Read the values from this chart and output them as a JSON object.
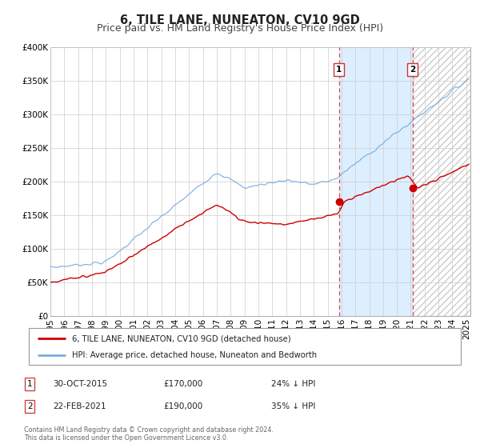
{
  "title": "6, TILE LANE, NUNEATON, CV10 9GD",
  "subtitle": "Price paid vs. HM Land Registry's House Price Index (HPI)",
  "ylim": [
    0,
    400000
  ],
  "xlim_start": 1995.0,
  "xlim_end": 2025.3,
  "yticks": [
    0,
    50000,
    100000,
    150000,
    200000,
    250000,
    300000,
    350000,
    400000
  ],
  "ytick_labels": [
    "£0",
    "£50K",
    "£100K",
    "£150K",
    "£200K",
    "£250K",
    "£300K",
    "£350K",
    "£400K"
  ],
  "xticks": [
    1995,
    1996,
    1997,
    1998,
    1999,
    2000,
    2001,
    2002,
    2003,
    2004,
    2005,
    2006,
    2007,
    2008,
    2009,
    2010,
    2011,
    2012,
    2013,
    2014,
    2015,
    2016,
    2017,
    2018,
    2019,
    2020,
    2021,
    2022,
    2023,
    2024,
    2025
  ],
  "sale1_x": 2015.83,
  "sale1_y": 170000,
  "sale1_label": "1",
  "sale1_date": "30-OCT-2015",
  "sale1_price": "£170,000",
  "sale1_hpi": "24% ↓ HPI",
  "sale2_x": 2021.13,
  "sale2_y": 190000,
  "sale2_label": "2",
  "sale2_date": "22-FEB-2021",
  "sale2_price": "£190,000",
  "sale2_hpi": "35% ↓ HPI",
  "red_line_color": "#cc0000",
  "blue_line_color": "#7aaddc",
  "shaded_solid_color": "#ddeeff",
  "shaded_hatch_color": "#e8e8e8",
  "background_color": "#ffffff",
  "legend1": "6, TILE LANE, NUNEATON, CV10 9GD (detached house)",
  "legend2": "HPI: Average price, detached house, Nuneaton and Bedworth",
  "footnote1": "Contains HM Land Registry data © Crown copyright and database right 2024.",
  "footnote2": "This data is licensed under the Open Government Licence v3.0.",
  "title_fontsize": 10.5,
  "subtitle_fontsize": 9,
  "tick_fontsize": 7.5
}
